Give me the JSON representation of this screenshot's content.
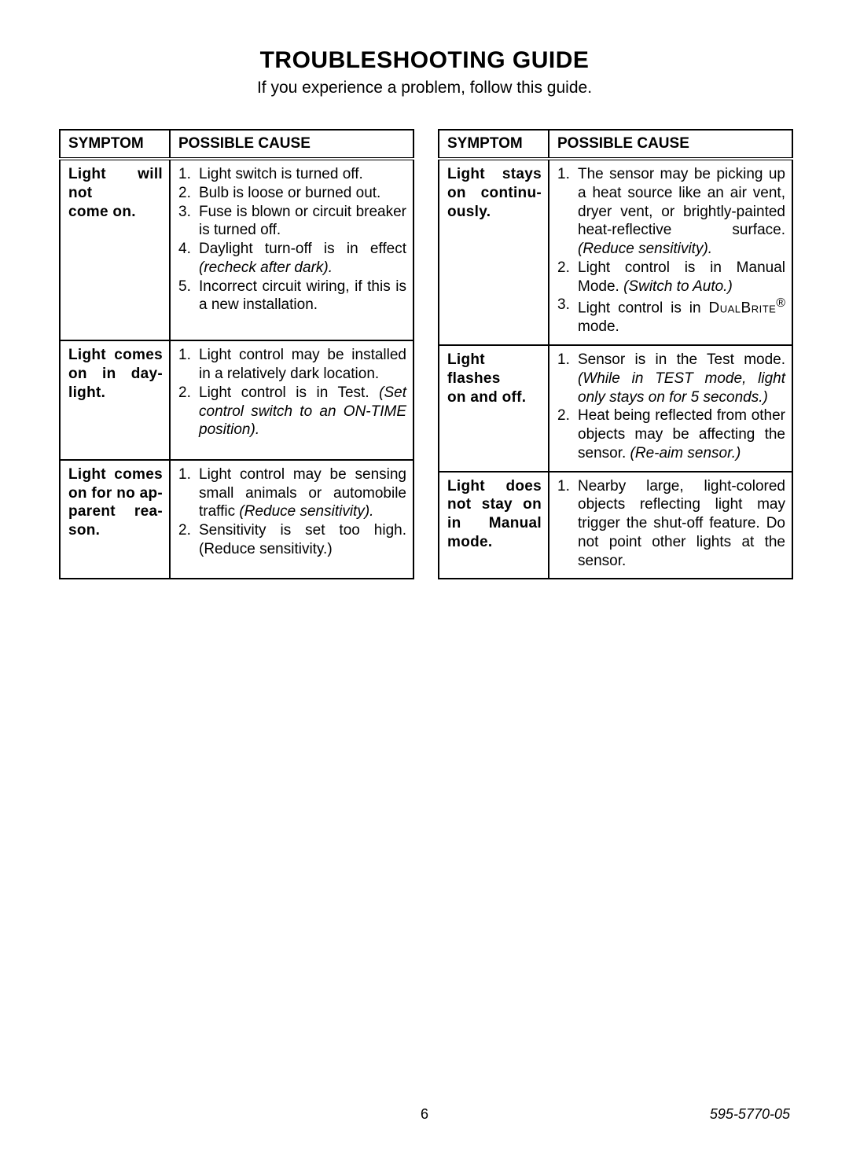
{
  "title": "TROUBLESHOOTING GUIDE",
  "subtitle": "If you experience a problem, follow this guide.",
  "headers": {
    "symptom": "SYMPTOM",
    "cause": "POSSIBLE CAUSE"
  },
  "left": [
    {
      "symptom_html": "Light will not<br><span class='last-line'>come on.</span>",
      "causes": [
        {
          "text": "Light switch is turned off."
        },
        {
          "text": "Bulb is loose or burned out."
        },
        {
          "text": "Fuse is blown or circuit breaker is turned off."
        },
        {
          "text": "Daylight turn-off is in effect ",
          "italic_after": "(recheck after dark)."
        },
        {
          "text": "Incorrect circuit wiring, if this is a new installation."
        }
      ]
    },
    {
      "symptom_html": "Light comes<br>on in day-<br><span class='last-line'>light.</span>",
      "causes": [
        {
          "text": "Light control may be installed in a relatively dark location."
        },
        {
          "text": "Light control is in Test. ",
          "italic_after": "(Set control switch to an ON-TIME position)."
        }
      ]
    },
    {
      "symptom_html": "Light comes<br>on for no ap-<br>parent rea-<br><span class='last-line'>son.</span>",
      "causes": [
        {
          "text": "Light control may be sensing small animals or automobile traffic ",
          "italic_after": "(Reduce sensitivity)."
        },
        {
          "text": "Sensitivity is set too high. (Reduce sensitivity.)"
        }
      ]
    }
  ],
  "right": [
    {
      "symptom_html": "Light stays<br>on continu-<br><span class='last-line'>ously.</span>",
      "causes": [
        {
          "text": "The sensor may be picking up a heat source like an air vent, dryer vent, or brightly-painted heat-reflective surface. ",
          "italic_after": "(Reduce sensitivity)."
        },
        {
          "text": "Light control is in Manual Mode. ",
          "italic_after": "(Switch to Auto.)"
        },
        {
          "text_html": "Light control is in <span class='smallcaps'>DualBrite</span><sup>®</sup> mode."
        }
      ]
    },
    {
      "symptom_html": "Light flashes<br><span class='last-line'>on and off.</span>",
      "causes": [
        {
          "text": "Sensor is in the Test mode. ",
          "italic_after": "(While in TEST mode, light only stays on for 5 seconds.)"
        },
        {
          "text": "Heat being reflected from other objects may be affecting the sensor. ",
          "italic_after": "(Re-aim sensor.)"
        }
      ]
    },
    {
      "symptom_html": "Light does<br>not stay on<br>in Manual<br><span class='last-line'>mode.</span>",
      "causes": [
        {
          "text": "Nearby large, light-colored objects reflecting light may trigger the shut-off feature. Do not point other lights at the sensor."
        }
      ]
    }
  ],
  "footer": {
    "page": "6",
    "docnum": "595-5770-05"
  }
}
